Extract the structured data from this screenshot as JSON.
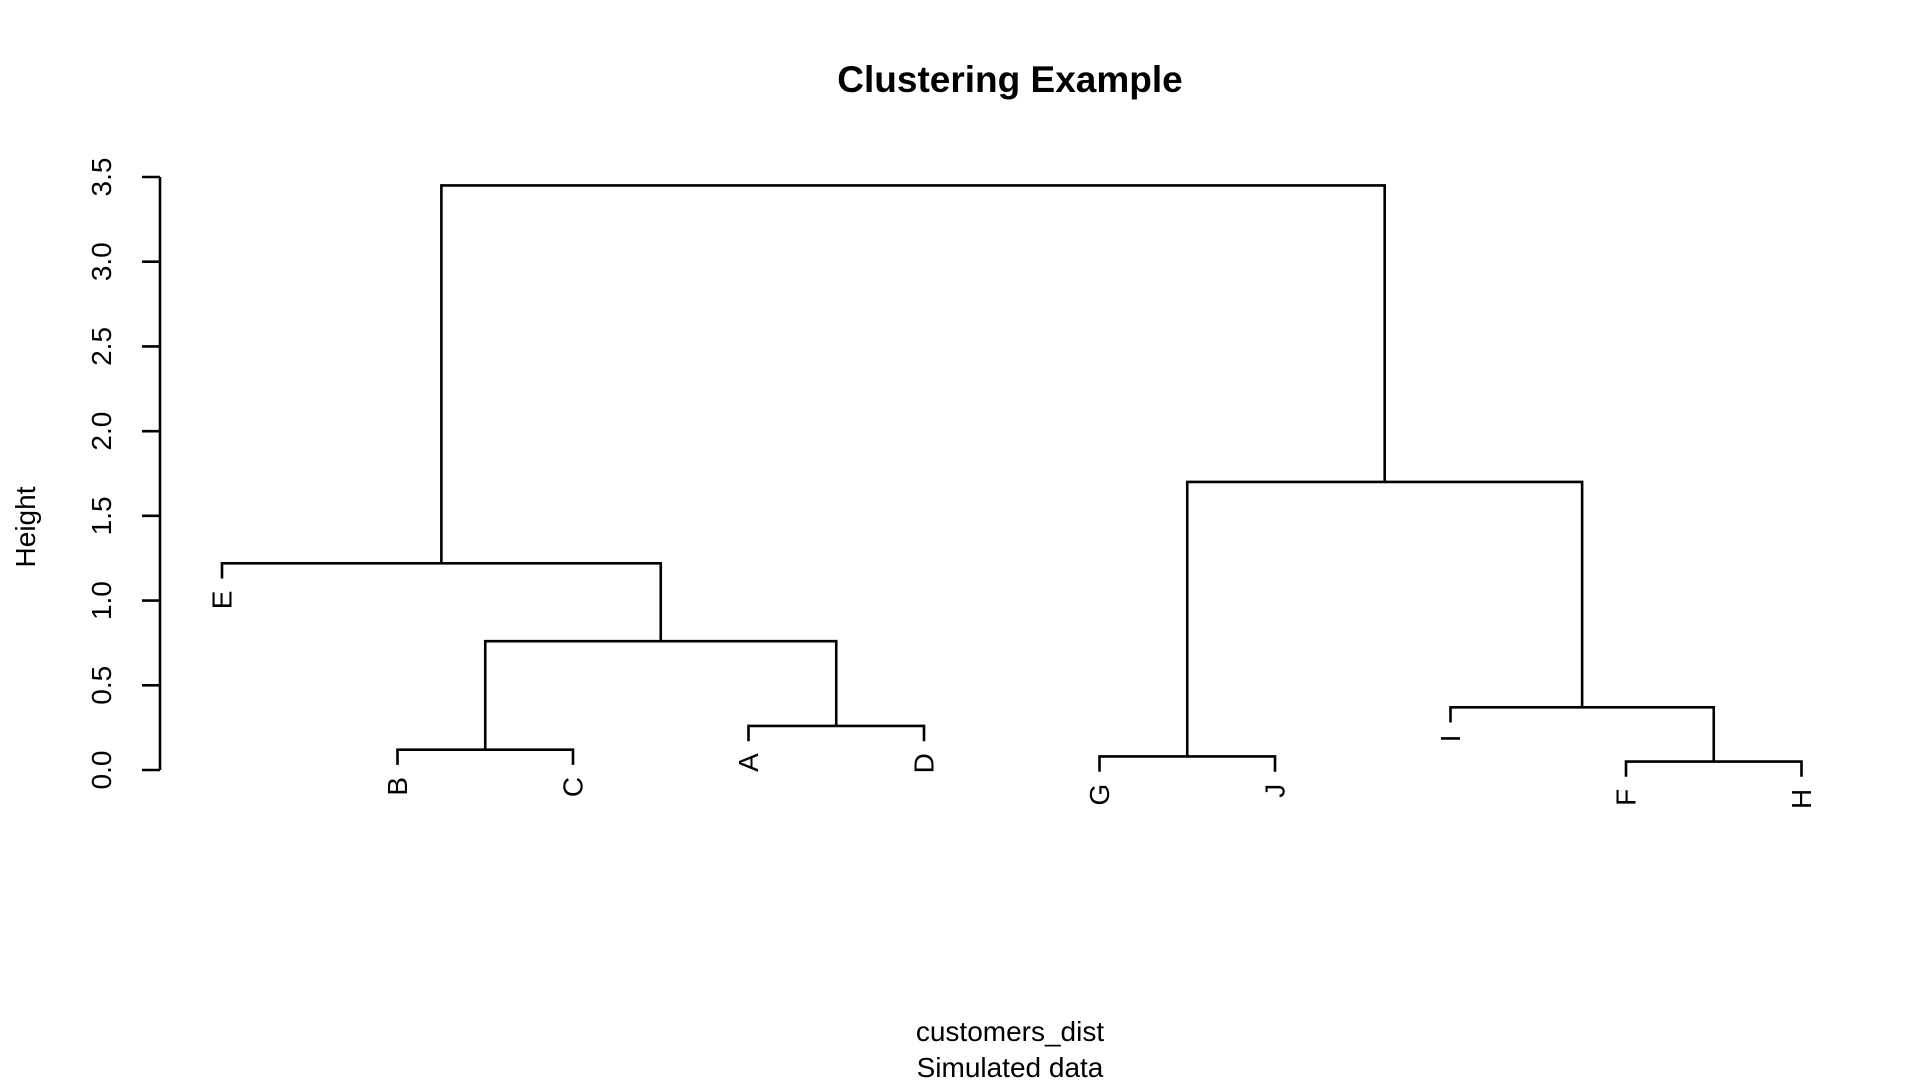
{
  "chart_data": {
    "type": "dendrogram",
    "title": "Clustering Example",
    "xlabel": "customers_dist",
    "sublabel": "Simulated data",
    "ylabel": "Height",
    "ylim": [
      0,
      3.5
    ],
    "yticks": [
      {
        "value": 0.0,
        "label": "0.0"
      },
      {
        "value": 0.5,
        "label": "0.5"
      },
      {
        "value": 1.0,
        "label": "1.0"
      },
      {
        "value": 1.5,
        "label": "1.5"
      },
      {
        "value": 2.0,
        "label": "2.0"
      },
      {
        "value": 2.5,
        "label": "2.5"
      },
      {
        "value": 3.0,
        "label": "3.0"
      },
      {
        "value": 3.5,
        "label": "3.5"
      }
    ],
    "leaf_order": [
      "E",
      "B",
      "C",
      "A",
      "D",
      "G",
      "J",
      "I",
      "F",
      "H"
    ],
    "merges": [
      {
        "left": "B",
        "right": "C",
        "height": 0.12
      },
      {
        "left": "A",
        "right": "D",
        "height": 0.26
      },
      {
        "left": "B+C",
        "right": "A+D",
        "height": 0.76
      },
      {
        "left": "E",
        "right": "B+C+A+D",
        "height": 1.22
      },
      {
        "left": "G",
        "right": "J",
        "height": 0.08
      },
      {
        "left": "F",
        "right": "H",
        "height": 0.05
      },
      {
        "left": "I",
        "right": "F+H",
        "height": 0.37
      },
      {
        "left": "G+J",
        "right": "I+F+H",
        "height": 1.7
      },
      {
        "left": "E+B+C+A+D",
        "right": "G+J+I+F+H",
        "height": 3.45
      }
    ]
  }
}
